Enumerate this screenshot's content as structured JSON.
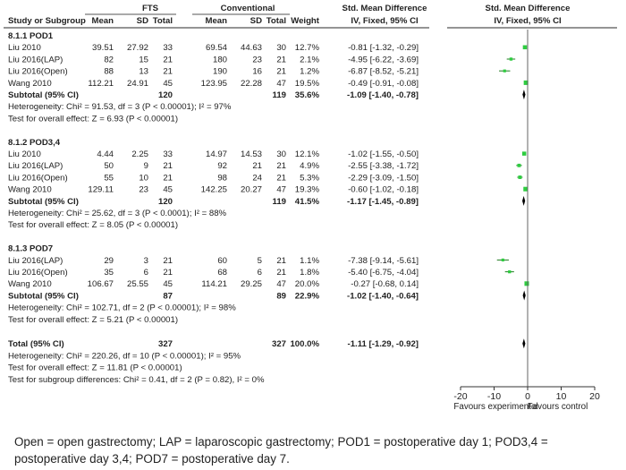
{
  "chart_data": {
    "type": "forest",
    "title": "Std. Mean Difference",
    "subtitle": "IV, Fixed, 95% CI",
    "header": {
      "group_fts": "FTS",
      "group_conv": "Conventional",
      "study": "Study or Subgroup",
      "mean": "Mean",
      "sd": "SD",
      "total": "Total",
      "weight": "Weight",
      "effect_title": "Std. Mean Difference",
      "effect_method": "IV, Fixed, 95% CI"
    },
    "x_axis": {
      "ticks": [
        -20,
        -10,
        0,
        10,
        20
      ],
      "tick_labels": [
        "-20",
        "-10",
        "0",
        "10",
        "20"
      ],
      "range": [
        -20,
        20
      ],
      "left_label": "Favours experimental",
      "right_label": "Favours control"
    },
    "colors": {
      "point": "#2ecc40",
      "ci_line": "#1f7a1f",
      "diamond": "#000000",
      "text": "#222222"
    },
    "subgroups": [
      {
        "label": "8.1.1 POD1",
        "studies": [
          {
            "name": "Liu 2010",
            "m1": "39.51",
            "sd1": "27.92",
            "n1": "33",
            "m2": "69.54",
            "sd2": "44.63",
            "n2": "30",
            "weight": "12.7%",
            "ci_text": "-0.81 [-1.32, -0.29]",
            "est": -0.81,
            "lo": -1.32,
            "hi": -0.29,
            "w": 12.7
          },
          {
            "name": "Liu 2016(LAP)",
            "m1": "82",
            "sd1": "15",
            "n1": "21",
            "m2": "180",
            "sd2": "23",
            "n2": "21",
            "weight": "2.1%",
            "ci_text": "-4.95 [-6.22, -3.69]",
            "est": -4.95,
            "lo": -6.22,
            "hi": -3.69,
            "w": 2.1
          },
          {
            "name": "Liu 2016(Open)",
            "m1": "88",
            "sd1": "13",
            "n1": "21",
            "m2": "190",
            "sd2": "16",
            "n2": "21",
            "weight": "1.2%",
            "ci_text": "-6.87 [-8.52, -5.21]",
            "est": -6.87,
            "lo": -8.52,
            "hi": -5.21,
            "w": 1.2
          },
          {
            "name": "Wang 2010",
            "m1": "112.21",
            "sd1": "24.91",
            "n1": "45",
            "m2": "123.95",
            "sd2": "22.28",
            "n2": "47",
            "weight": "19.5%",
            "ci_text": "-0.49 [-0.91, -0.08]",
            "est": -0.49,
            "lo": -0.91,
            "hi": -0.08,
            "w": 19.5
          }
        ],
        "subtotal": {
          "label": "Subtotal (95% CI)",
          "n1": "120",
          "n2": "119",
          "weight": "35.6%",
          "ci_text": "-1.09 [-1.40, -0.78]",
          "est": -1.09,
          "lo": -1.4,
          "hi": -0.78
        },
        "heterogeneity": "Heterogeneity: Chi² = 91.53, df = 3 (P < 0.00001); I² = 97%",
        "overall": "Test for overall effect: Z = 6.93 (P < 0.00001)"
      },
      {
        "label": "8.1.2 POD3,4",
        "studies": [
          {
            "name": "Liu 2010",
            "m1": "4.44",
            "sd1": "2.25",
            "n1": "33",
            "m2": "14.97",
            "sd2": "14.53",
            "n2": "30",
            "weight": "12.1%",
            "ci_text": "-1.02 [-1.55, -0.50]",
            "est": -1.02,
            "lo": -1.55,
            "hi": -0.5,
            "w": 12.1
          },
          {
            "name": "Liu 2016(LAP)",
            "m1": "50",
            "sd1": "9",
            "n1": "21",
            "m2": "92",
            "sd2": "21",
            "n2": "21",
            "weight": "4.9%",
            "ci_text": "-2.55 [-3.38, -1.72]",
            "est": -2.55,
            "lo": -3.38,
            "hi": -1.72,
            "w": 4.9
          },
          {
            "name": "Liu 2016(Open)",
            "m1": "55",
            "sd1": "10",
            "n1": "21",
            "m2": "98",
            "sd2": "24",
            "n2": "21",
            "weight": "5.3%",
            "ci_text": "-2.29 [-3.09, -1.50]",
            "est": -2.29,
            "lo": -3.09,
            "hi": -1.5,
            "w": 5.3
          },
          {
            "name": "Wang 2010",
            "m1": "129.11",
            "sd1": "23",
            "n1": "45",
            "m2": "142.25",
            "sd2": "20.27",
            "n2": "47",
            "weight": "19.3%",
            "ci_text": "-0.60 [-1.02, -0.18]",
            "est": -0.6,
            "lo": -1.02,
            "hi": -0.18,
            "w": 19.3
          }
        ],
        "subtotal": {
          "label": "Subtotal (95% CI)",
          "n1": "120",
          "n2": "119",
          "weight": "41.5%",
          "ci_text": "-1.17 [-1.45, -0.89]",
          "est": -1.17,
          "lo": -1.45,
          "hi": -0.89
        },
        "heterogeneity": "Heterogeneity: Chi² = 25.62, df = 3 (P < 0.0001); I² = 88%",
        "overall": "Test for overall effect: Z = 8.05 (P < 0.00001)"
      },
      {
        "label": "8.1.3 POD7",
        "studies": [
          {
            "name": "Liu 2016(LAP)",
            "m1": "29",
            "sd1": "3",
            "n1": "21",
            "m2": "60",
            "sd2": "5",
            "n2": "21",
            "weight": "1.1%",
            "ci_text": "-7.38 [-9.14, -5.61]",
            "est": -7.38,
            "lo": -9.14,
            "hi": -5.61,
            "w": 1.1
          },
          {
            "name": "Liu 2016(Open)",
            "m1": "35",
            "sd1": "6",
            "n1": "21",
            "m2": "68",
            "sd2": "6",
            "n2": "21",
            "weight": "1.8%",
            "ci_text": "-5.40 [-6.75, -4.04]",
            "est": -5.4,
            "lo": -6.75,
            "hi": -4.04,
            "w": 1.8
          },
          {
            "name": "Wang 2010",
            "m1": "106.67",
            "sd1": "25.55",
            "n1": "45",
            "m2": "114.21",
            "sd2": "29.25",
            "n2": "47",
            "weight": "20.0%",
            "ci_text": "-0.27 [-0.68, 0.14]",
            "est": -0.27,
            "lo": -0.68,
            "hi": 0.14,
            "w": 20.0
          }
        ],
        "subtotal": {
          "label": "Subtotal (95% CI)",
          "n1": "87",
          "n2": "89",
          "weight": "22.9%",
          "ci_text": "-1.02 [-1.40, -0.64]",
          "est": -1.02,
          "lo": -1.4,
          "hi": -0.64
        },
        "heterogeneity": "Heterogeneity: Chi² = 102.71, df = 2 (P < 0.00001); I² = 98%",
        "overall": "Test for overall effect: Z = 5.21 (P < 0.00001)"
      }
    ],
    "total": {
      "label": "Total (95% CI)",
      "n1": "327",
      "n2": "327",
      "weight": "100.0%",
      "ci_text": "-1.11 [-1.29, -0.92]",
      "est": -1.11,
      "lo": -1.29,
      "hi": -0.92
    },
    "footer_lines": [
      "Heterogeneity: Chi² = 220.26, df = 10 (P < 0.00001); I² = 95%",
      "Test for overall effect: Z = 11.81 (P < 0.00001)",
      "Test for subgroup differences: Chi² = 0.41, df = 2 (P = 0.82), I² = 0%"
    ]
  },
  "caption": "Open = open gastrectomy; LAP = laparoscopic gastrectomy; POD1 = postoperative day 1; POD3,4 = postoperative day 3,4; POD7 = postoperative day 7."
}
